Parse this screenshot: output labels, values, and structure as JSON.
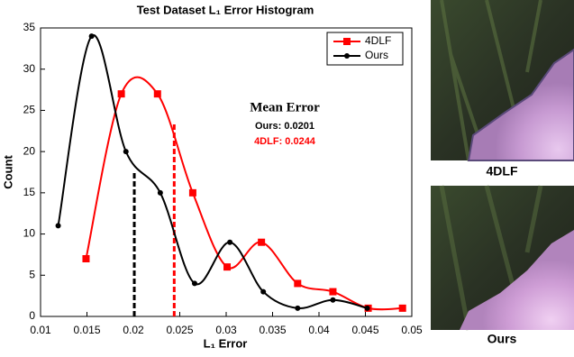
{
  "chart_data": {
    "type": "line",
    "title": "Test Dataset L₁ Error Histogram",
    "x_label": "L₁ Error",
    "y_label": "Count",
    "xlim": [
      0.01,
      0.05
    ],
    "xticks": [
      0.01,
      0.015,
      0.02,
      0.025,
      0.03,
      0.035,
      0.04,
      0.045,
      0.05
    ],
    "ylim": [
      0,
      35
    ],
    "yticks": [
      0,
      5,
      10,
      15,
      20,
      25,
      30,
      35
    ],
    "legend_position": "upper right",
    "series": [
      {
        "name": "4DLF",
        "color": "#ff0000",
        "marker": "square",
        "x": [
          0.0149,
          0.0187,
          0.0226,
          0.0264,
          0.0301,
          0.0338,
          0.0377,
          0.0415,
          0.0453,
          0.049
        ],
        "values": [
          7,
          27,
          27,
          15,
          6,
          9,
          4,
          3,
          1,
          1
        ]
      },
      {
        "name": "Ours",
        "color": "#000000",
        "marker": "circle",
        "x": [
          0.0119,
          0.0155,
          0.0192,
          0.0229,
          0.0266,
          0.0304,
          0.034,
          0.0377,
          0.0415,
          0.0452
        ],
        "values": [
          11,
          34,
          20,
          15,
          4,
          9,
          3,
          1,
          2,
          1
        ]
      }
    ],
    "mean_error_title": "Mean Error",
    "mean_errors": [
      {
        "label": "Ours: 0.0201",
        "value": 0.0201,
        "line_top": 17.5,
        "color": "#000000"
      },
      {
        "label": "4DLF: 0.0244",
        "value": 0.0244,
        "line_top": 23.5,
        "color": "#ff0000"
      }
    ]
  },
  "panels": [
    {
      "label": "4DLF"
    },
    {
      "label": "Ours"
    }
  ]
}
